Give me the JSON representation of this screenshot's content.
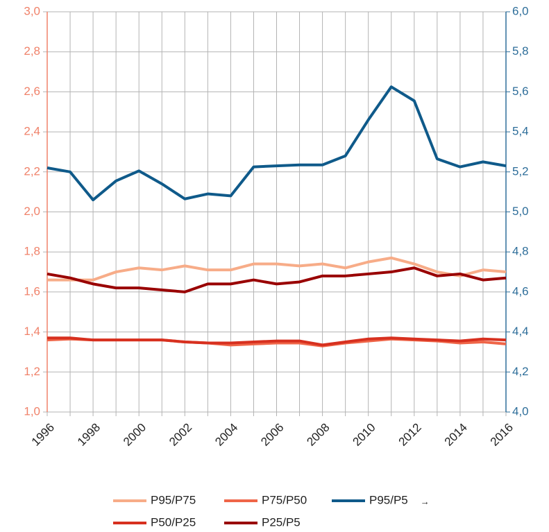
{
  "chart_data": {
    "type": "line",
    "x": [
      1996,
      1997,
      1998,
      1999,
      2000,
      2001,
      2002,
      2003,
      2004,
      2005,
      2006,
      2007,
      2008,
      2009,
      2010,
      2011,
      2012,
      2013,
      2014,
      2015,
      2016
    ],
    "xlim": [
      1996,
      2016
    ],
    "xticks": [
      1996,
      1998,
      2000,
      2002,
      2004,
      2006,
      2008,
      2010,
      2012,
      2014,
      2016
    ],
    "ylim": [
      1.0,
      3.0
    ],
    "yticks": [
      {
        "value": 1.0,
        "label": "1,0"
      },
      {
        "value": 1.2,
        "label": "1,2"
      },
      {
        "value": 1.4,
        "label": "1,4"
      },
      {
        "value": 1.6,
        "label": "1,6"
      },
      {
        "value": 1.8,
        "label": "1,8"
      },
      {
        "value": 2.0,
        "label": "2,0"
      },
      {
        "value": 2.2,
        "label": "2,2"
      },
      {
        "value": 2.4,
        "label": "2,4"
      },
      {
        "value": 2.6,
        "label": "2,6"
      },
      {
        "value": 2.8,
        "label": "2,8"
      },
      {
        "value": 3.0,
        "label": "3,0"
      }
    ],
    "y2lim": [
      4.0,
      6.0
    ],
    "y2ticks": [
      {
        "value": 4.0,
        "label": "4,0"
      },
      {
        "value": 4.2,
        "label": "4,2"
      },
      {
        "value": 4.4,
        "label": "4,4"
      },
      {
        "value": 4.6,
        "label": "4,6"
      },
      {
        "value": 4.8,
        "label": "4,8"
      },
      {
        "value": 5.0,
        "label": "5,0"
      },
      {
        "value": 5.2,
        "label": "5,2"
      },
      {
        "value": 5.4,
        "label": "5,4"
      },
      {
        "value": 5.6,
        "label": "5,6"
      },
      {
        "value": 5.8,
        "label": "5,8"
      },
      {
        "value": 6.0,
        "label": "6,0"
      }
    ],
    "grid": true,
    "legend": "bottom",
    "y2_legend_marker": "→",
    "series": [
      {
        "name": "P95/P75",
        "color": "#f7ac88",
        "values": [
          1.66,
          1.66,
          1.66,
          1.7,
          1.72,
          1.71,
          1.73,
          1.71,
          1.71,
          1.74,
          1.74,
          1.73,
          1.74,
          1.72,
          1.75,
          1.77,
          1.74,
          1.7,
          1.68,
          1.71,
          1.7
        ]
      },
      {
        "name": "P75/P50",
        "color": "#ef6548",
        "values": [
          1.36,
          1.365,
          1.36,
          1.36,
          1.36,
          1.36,
          1.35,
          1.345,
          1.335,
          1.34,
          1.345,
          1.345,
          1.33,
          1.345,
          1.355,
          1.365,
          1.36,
          1.355,
          1.345,
          1.35,
          1.34
        ]
      },
      {
        "name": "P95/P5",
        "color": "#0f5a8a",
        "axis": "y2",
        "values": [
          5.22,
          5.2,
          5.06,
          5.155,
          5.205,
          5.14,
          5.065,
          5.09,
          5.08,
          5.225,
          5.23,
          5.235,
          5.235,
          5.28,
          5.46,
          5.625,
          5.555,
          5.265,
          5.225,
          5.25,
          5.23
        ]
      },
      {
        "name": "P50/P25",
        "color": "#d7301f",
        "values": [
          1.37,
          1.37,
          1.36,
          1.36,
          1.36,
          1.36,
          1.35,
          1.345,
          1.345,
          1.35,
          1.355,
          1.355,
          1.335,
          1.35,
          1.365,
          1.37,
          1.365,
          1.36,
          1.355,
          1.365,
          1.36
        ]
      },
      {
        "name": "P25/P5",
        "color": "#990000",
        "values": [
          1.69,
          1.67,
          1.64,
          1.62,
          1.62,
          1.61,
          1.6,
          1.64,
          1.64,
          1.66,
          1.64,
          1.65,
          1.68,
          1.68,
          1.69,
          1.7,
          1.72,
          1.68,
          1.69,
          1.66,
          1.67
        ]
      }
    ]
  }
}
